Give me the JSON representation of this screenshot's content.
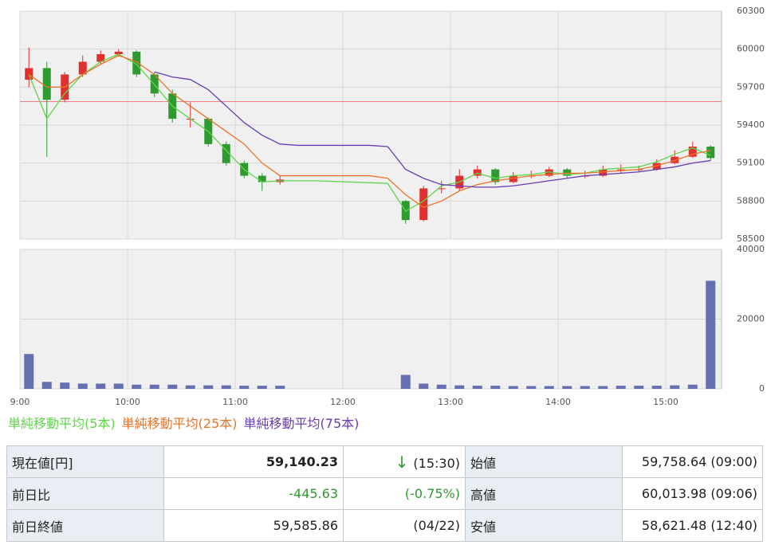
{
  "chart_data": [
    {
      "type": "candlestick",
      "open": [
        59758,
        59850,
        59600,
        59800,
        59900,
        59960,
        59980,
        59800,
        59650,
        59450,
        59450,
        59250,
        59100,
        59000,
        58950,
        null,
        null,
        null,
        null,
        null,
        null,
        58800,
        58650,
        58900,
        58900,
        59000,
        59050,
        58950,
        59000,
        59000,
        59050,
        59000,
        59000,
        59050,
        59050,
        59050,
        59100,
        59150,
        59230
      ],
      "high": [
        60014,
        59900,
        59820,
        59950,
        59990,
        60000,
        59990,
        59820,
        59680,
        59580,
        59460,
        59270,
        59120,
        59020,
        59000,
        null,
        null,
        null,
        null,
        null,
        null,
        58810,
        58920,
        58960,
        59050,
        59080,
        59060,
        59030,
        59040,
        59070,
        59060,
        59040,
        59080,
        59090,
        59080,
        59130,
        59200,
        59270,
        59240
      ],
      "low": [
        59700,
        59150,
        59580,
        59780,
        59880,
        59940,
        59780,
        59620,
        59420,
        59380,
        59230,
        59080,
        58980,
        58880,
        58930,
        null,
        null,
        null,
        null,
        null,
        null,
        58621,
        58640,
        58860,
        58880,
        58980,
        58930,
        58940,
        58980,
        58990,
        58980,
        58980,
        58990,
        59020,
        59030,
        59040,
        59090,
        59140,
        59120
      ],
      "close": [
        59850,
        59600,
        59800,
        59900,
        59960,
        59980,
        59800,
        59650,
        59450,
        59450,
        59250,
        59100,
        59000,
        58950,
        58970,
        null,
        null,
        null,
        null,
        null,
        null,
        58650,
        58900,
        58900,
        59000,
        59050,
        58950,
        59000,
        59000,
        59050,
        59000,
        59000,
        59050,
        59050,
        59050,
        59100,
        59150,
        59230,
        59140
      ],
      "up_color": "#e03030",
      "down_color": "#2f9a2f",
      "series": [
        {
          "name": "単純移動平均(5本)",
          "color": "#5fd64a",
          "values": [
            59800,
            59450,
            59650,
            59800,
            59900,
            59960,
            59880,
            59720,
            59550,
            59450,
            59350,
            59200,
            59050,
            58950,
            58960,
            58960,
            58960,
            58955,
            58950,
            58945,
            58940,
            58720,
            58800,
            58920,
            58950,
            59020,
            58980,
            59000,
            59010,
            59030,
            59010,
            59020,
            59050,
            59060,
            59070,
            59110,
            59170,
            59220,
            59160
          ]
        },
        {
          "name": "単純移動平均(25本)",
          "color": "#e8752a",
          "values": [
            59800,
            59700,
            59700,
            59800,
            59880,
            59950,
            59900,
            59800,
            59650,
            59550,
            59450,
            59350,
            59250,
            59100,
            59000,
            59000,
            59000,
            59000,
            59000,
            59000,
            58980,
            58850,
            58750,
            58800,
            58880,
            58930,
            58960,
            58980,
            59000,
            59010,
            59020,
            59020,
            59030,
            59040,
            59050,
            59080,
            59120,
            59170,
            59200
          ]
        },
        {
          "name": "単純移動平均(75本)",
          "color": "#6a3cb5",
          "values": [
            null,
            null,
            null,
            null,
            null,
            null,
            null,
            59820,
            59780,
            59760,
            59680,
            59550,
            59420,
            59320,
            59250,
            59240,
            59240,
            59240,
            59240,
            59240,
            59230,
            59050,
            58980,
            58930,
            58920,
            58910,
            58910,
            58920,
            58940,
            58960,
            58980,
            59000,
            59010,
            59020,
            59030,
            59050,
            59070,
            59100,
            59120
          ]
        }
      ],
      "reference_line": 59585.86,
      "reference_color": "#f08080",
      "ylim": [
        58500,
        60300
      ],
      "yticks": [
        58500,
        58800,
        59100,
        59400,
        59700,
        60000,
        60300
      ],
      "grid": true
    },
    {
      "type": "bar",
      "color": "#6670b0",
      "categories": [
        "9:00",
        null,
        null,
        null,
        null,
        null,
        "10:00",
        null,
        null,
        null,
        null,
        null,
        "11:00",
        null,
        null,
        null,
        null,
        null,
        "12:00",
        null,
        null,
        null,
        null,
        null,
        "13:00",
        null,
        null,
        null,
        null,
        null,
        "14:00",
        null,
        null,
        null,
        null,
        null,
        "15:00",
        null,
        null
      ],
      "values": [
        10000,
        2000,
        1800,
        1500,
        1500,
        1500,
        1200,
        1200,
        1200,
        1000,
        1000,
        1000,
        900,
        900,
        900,
        null,
        null,
        null,
        null,
        null,
        null,
        4000,
        1500,
        1200,
        1000,
        900,
        900,
        800,
        800,
        800,
        800,
        800,
        800,
        900,
        900,
        900,
        1000,
        1200,
        31000
      ],
      "ylim": [
        0,
        40000
      ],
      "yticks": [
        0,
        20000,
        40000
      ],
      "grid": true
    }
  ],
  "table": {
    "rows": [
      {
        "label": "現在値[円]",
        "value": "59,140.23",
        "note": "(15:30)",
        "label2": "始値",
        "value2": "59,758.64 (09:00)"
      },
      {
        "label": "前日比",
        "value": "-445.63",
        "note": "(-0.75%)",
        "label2": "高値",
        "value2": "60,013.98 (09:06)"
      },
      {
        "label": "前日終値",
        "value": "59,585.86",
        "note": "(04/22)",
        "label2": "安値",
        "value2": "58,621.48 (12:40)"
      }
    ]
  }
}
